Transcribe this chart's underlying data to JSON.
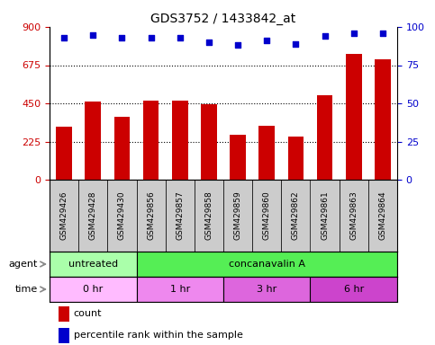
{
  "title": "GDS3752 / 1433842_at",
  "samples": [
    "GSM429426",
    "GSM429428",
    "GSM429430",
    "GSM429856",
    "GSM429857",
    "GSM429858",
    "GSM429859",
    "GSM429860",
    "GSM429862",
    "GSM429861",
    "GSM429863",
    "GSM429864"
  ],
  "counts": [
    310,
    460,
    370,
    465,
    465,
    445,
    265,
    320,
    255,
    500,
    740,
    710
  ],
  "percentiles": [
    93,
    95,
    93,
    93,
    93,
    90,
    88,
    91,
    89,
    94,
    96,
    96
  ],
  "ylim_left": [
    0,
    900
  ],
  "ylim_right": [
    0,
    100
  ],
  "yticks_left": [
    0,
    225,
    450,
    675,
    900
  ],
  "yticks_right": [
    0,
    25,
    50,
    75,
    100
  ],
  "bar_color": "#cc0000",
  "dot_color": "#0000cc",
  "agent_row": [
    {
      "label": "untreated",
      "start": 0,
      "end": 3,
      "color": "#aaffaa"
    },
    {
      "label": "concanavalin A",
      "start": 3,
      "end": 12,
      "color": "#55ee55"
    }
  ],
  "time_row": [
    {
      "label": "0 hr",
      "start": 0,
      "end": 3,
      "color": "#ffbbff"
    },
    {
      "label": "1 hr",
      "start": 3,
      "end": 6,
      "color": "#ee88ee"
    },
    {
      "label": "3 hr",
      "start": 6,
      "end": 9,
      "color": "#dd66dd"
    },
    {
      "label": "6 hr",
      "start": 9,
      "end": 12,
      "color": "#cc44cc"
    }
  ],
  "background_color": "#ffffff",
  "tick_color_left": "#cc0000",
  "tick_color_right": "#0000cc",
  "label_box_color": "#cccccc",
  "fig_width": 4.83,
  "fig_height": 3.84,
  "dpi": 100
}
